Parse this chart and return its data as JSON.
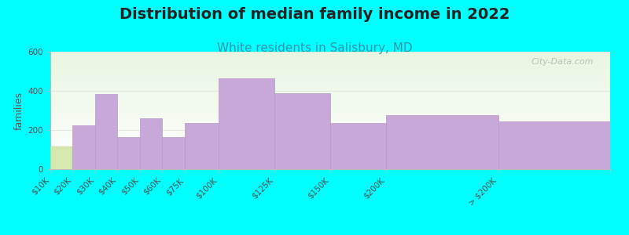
{
  "title": "Distribution of median family income in 2022",
  "subtitle": "White residents in Salisbury, MD",
  "ylabel": "families",
  "background_outer": "#00FFFF",
  "bar_color": "#c8a8d8",
  "bar_edge_color": "#b898c8",
  "first_bar_color": "#d4e8b0",
  "first_bar_edge": "#c0d898",
  "categories": [
    "$10K",
    "$20K",
    "$30K",
    "$40K",
    "$50K",
    "$60K",
    "$75K",
    "$100K",
    "$125K",
    "$150K",
    "$200K",
    "> $200K"
  ],
  "values": [
    115,
    225,
    385,
    165,
    260,
    165,
    235,
    465,
    390,
    235,
    275,
    245
  ],
  "bin_lefts": [
    0,
    10,
    20,
    30,
    40,
    50,
    60,
    75,
    100,
    125,
    150,
    200
  ],
  "bin_widths": [
    10,
    10,
    10,
    10,
    10,
    10,
    15,
    25,
    25,
    25,
    50,
    50
  ],
  "ylim": [
    0,
    600
  ],
  "yticks": [
    0,
    200,
    400,
    600
  ],
  "watermark": "City-Data.com",
  "title_fontsize": 14,
  "subtitle_fontsize": 11,
  "ylabel_fontsize": 9,
  "tick_fontsize": 7.5
}
